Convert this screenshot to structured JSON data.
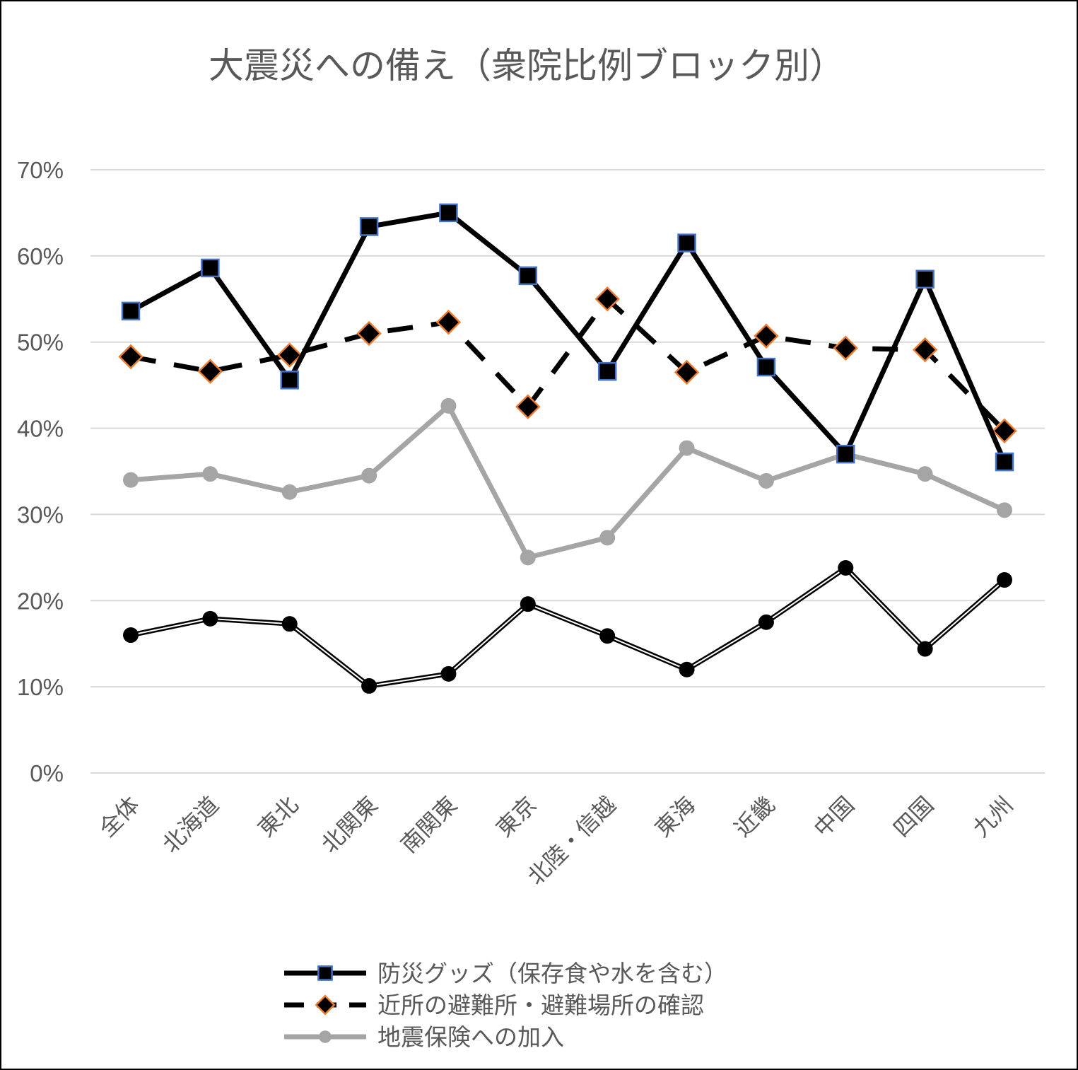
{
  "chart_data": {
    "type": "line",
    "title": "大震災への備え（衆院比例ブロック別）",
    "categories": [
      "全体",
      "北海道",
      "東北",
      "北関東",
      "南関東",
      "東京",
      "北陸・信越",
      "東海",
      "近畿",
      "中国",
      "四国",
      "九州"
    ],
    "ylim": [
      0,
      70
    ],
    "yticks": [
      "0%",
      "10%",
      "20%",
      "30%",
      "40%",
      "50%",
      "60%",
      "70%"
    ],
    "grid": true,
    "legend_position": "bottom",
    "series": [
      {
        "name": "防災グッズ（保存食や水を含む）",
        "values": [
          53.6,
          58.6,
          45.6,
          63.4,
          65.0,
          57.7,
          46.6,
          61.5,
          47.1,
          37.0,
          57.3,
          36.1
        ],
        "color": "#000000",
        "marker": "square",
        "marker_stroke": "#4472C4",
        "style": "solid"
      },
      {
        "name": "近所の避難所・避難場所の確認",
        "values": [
          48.3,
          46.6,
          48.5,
          51.0,
          52.3,
          42.5,
          55.0,
          46.5,
          50.7,
          49.3,
          49.1,
          39.7
        ],
        "color": "#000000",
        "marker": "diamond",
        "marker_stroke": "#ED7D31",
        "style": "dashed"
      },
      {
        "name": "地震保険への加入",
        "values": [
          34.0,
          34.7,
          32.6,
          34.5,
          42.6,
          25.0,
          27.3,
          37.7,
          33.9,
          37.0,
          34.7,
          30.5
        ],
        "color": "#A5A5A5",
        "marker": "circle",
        "style": "solid"
      },
      {
        "values": [
          16.0,
          17.9,
          17.3,
          10.1,
          11.5,
          19.6,
          15.9,
          12.0,
          17.5,
          23.8,
          14.4,
          22.4
        ],
        "color": "#000000",
        "marker": "circle",
        "style": "double"
      }
    ]
  }
}
